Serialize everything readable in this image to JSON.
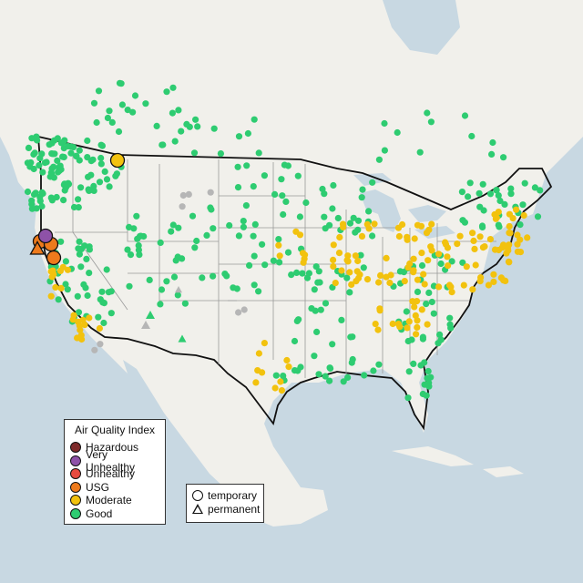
{
  "legend": {
    "title": "Air Quality Index",
    "items": [
      {
        "label": "Hazardous",
        "color": "#7e2a2a"
      },
      {
        "label": "Very Unhealthy",
        "color": "#8e52a8"
      },
      {
        "label": "Unhealthy",
        "color": "#e84a3f"
      },
      {
        "label": "USG",
        "color": "#ee7a1c"
      },
      {
        "label": "Moderate",
        "color": "#f2c20e"
      },
      {
        "label": "Good",
        "color": "#2ecc71"
      }
    ],
    "types": [
      {
        "label": "temporary",
        "shape": "circle"
      },
      {
        "label": "permanent",
        "shape": "triangle"
      }
    ]
  },
  "colors": {
    "ocean": "#c8d8e2",
    "land": "#f2f1ec",
    "nodata": "#b6b6b6"
  }
}
